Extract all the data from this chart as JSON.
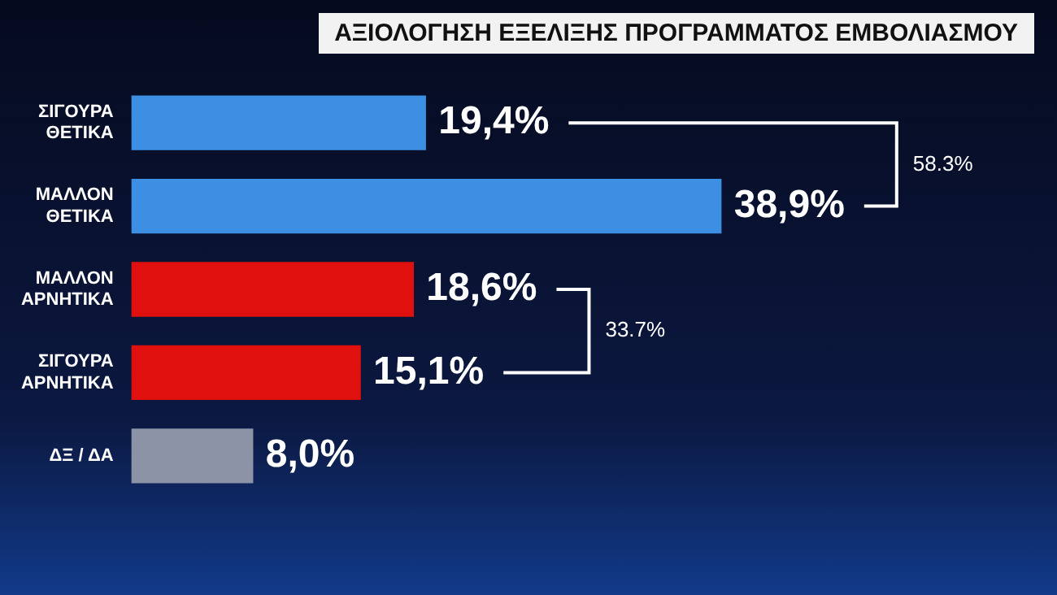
{
  "chart_data": {
    "type": "bar",
    "orientation": "horizontal",
    "title": "ΑΞΙΟΛΟΓΗΣΗ ΕΞΕΛΙΞΗΣ ΠΡΟΓΡΑΜΜΑΤΟΣ ΕΜΒΟΛΙΑΣΜΟΥ",
    "categories": [
      "ΣΙΓΟΥΡΑ\nΘΕΤΙΚΑ",
      "ΜΑΛΛΟΝ\nΘΕΤΙΚΑ",
      "ΜΑΛΛΟΝ\nΑΡΝΗΤΙΚΑ",
      "ΣΙΓΟΥΡΑ\nΑΡΝΗΤΙΚΑ",
      "ΔΞ / ΔΑ"
    ],
    "values": [
      19.4,
      38.9,
      18.6,
      15.1,
      8.0
    ],
    "value_labels": [
      "19,4%",
      "38,9%",
      "18,6%",
      "15,1%",
      "8,0%"
    ],
    "colors": [
      "#3d8fe3",
      "#3d8fe3",
      "#e0100f",
      "#e0100f",
      "#8c93a6"
    ],
    "annotations": [
      "58.3%",
      "33.7%"
    ],
    "grid": false,
    "legend": false
  }
}
